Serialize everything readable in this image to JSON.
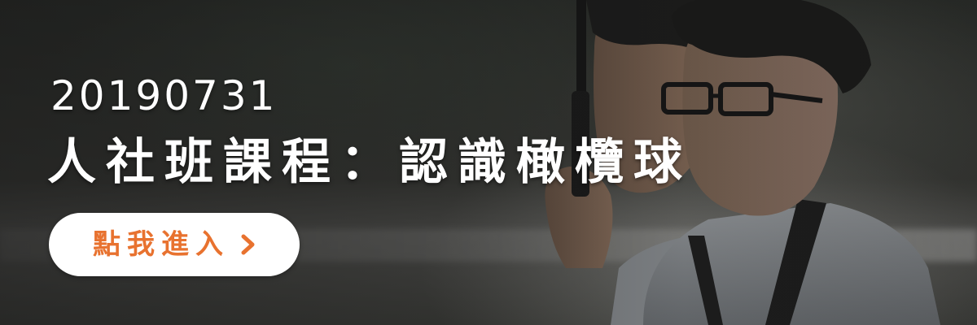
{
  "banner": {
    "date": "20190731",
    "title": "人社班課程：認識橄欖球",
    "cta": {
      "label": "點我進入",
      "icon": "chevron-right-icon",
      "color": "#e8722f",
      "background": "#ffffff"
    },
    "photo": {
      "subject": "two-students-portrait"
    }
  }
}
